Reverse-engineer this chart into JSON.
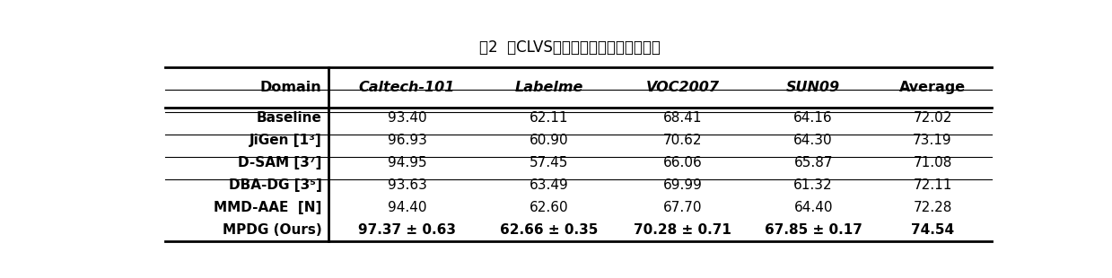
{
  "title": "表2  在CLVS四个数据库上的分类准确率",
  "col_headers": [
    "Domain",
    "Caltech-101",
    "Labelme",
    "VOC2007",
    "SUN09",
    "Average"
  ],
  "col_italic": [
    false,
    true,
    true,
    true,
    true,
    false
  ],
  "col_bold": [
    true,
    true,
    true,
    true,
    true,
    true
  ],
  "rows": [
    {
      "domain": "Baseline",
      "values": [
        "93.40",
        "62.11",
        "68.41",
        "64.16",
        "72.02"
      ],
      "bold_values": [
        false,
        false,
        false,
        false,
        false
      ]
    },
    {
      "domain": "JiGen [1³]",
      "values": [
        "96.93",
        "60.90",
        "70.62",
        "64.30",
        "73.19"
      ],
      "bold_values": [
        false,
        false,
        false,
        false,
        false
      ]
    },
    {
      "domain": "D-SAM [3⁷]",
      "values": [
        "94.95",
        "57.45",
        "66.06",
        "65.87",
        "71.08"
      ],
      "bold_values": [
        false,
        false,
        false,
        false,
        false
      ]
    },
    {
      "domain": "DBA-DG [3⁵]",
      "values": [
        "93.63",
        "63.49",
        "69.99",
        "61.32",
        "72.11"
      ],
      "bold_values": [
        false,
        false,
        false,
        false,
        false
      ]
    },
    {
      "domain": "MMD-AAE  [N]",
      "values": [
        "94.40",
        "62.60",
        "67.70",
        "64.40",
        "72.28"
      ],
      "bold_values": [
        false,
        false,
        false,
        false,
        false
      ]
    },
    {
      "domain": "MPDG (Ours)",
      "values": [
        "97.37 ± 0.63",
        "62.66 ± 0.35",
        "70.28 ± 0.71",
        "67.85 ± 0.17",
        "74.54"
      ],
      "bold_values": [
        true,
        true,
        true,
        true,
        true
      ]
    }
  ],
  "bg_color": "#ffffff",
  "text_color": "#000000",
  "figsize": [
    12.39,
    3.1
  ],
  "dpi": 100,
  "lw_thick": 2.0,
  "lw_thin": 0.8,
  "lw_mid": 1.2
}
